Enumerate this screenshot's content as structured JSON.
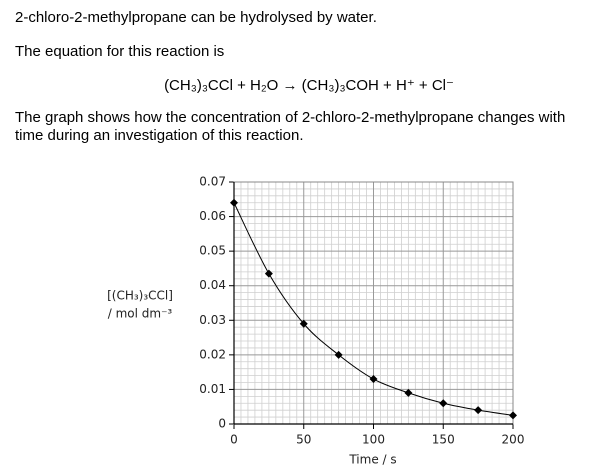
{
  "paragraphs": [
    "2-chloro-2-methylpropane can be hydrolysed by water.",
    "The equation for this reaction is",
    "The graph shows how the concentration of 2-chloro-2-methylpropane changes with time during an investigation of this reaction."
  ],
  "equation": "(CH₃)₃CCl + H₂O → (CH₃)₃COH + H⁺ + Cl⁻",
  "chart_data": {
    "type": "line",
    "x_label": "Time / s",
    "y_label": [
      "[(CH₃)₃CCl]",
      "/ mol dm⁻³"
    ],
    "x": [
      0,
      25,
      50,
      75,
      100,
      125,
      150,
      175,
      200
    ],
    "series": [
      {
        "color": "#000000",
        "values": [
          0.064,
          0.0435,
          0.029,
          0.02,
          0.013,
          0.009,
          0.006,
          0.004,
          0.0025
        ]
      }
    ],
    "xlim": [
      0,
      200
    ],
    "xticks": [
      0,
      50,
      100,
      150,
      200
    ],
    "ylim": [
      0,
      0.07
    ],
    "yticks": [
      0,
      0.01,
      0.02,
      0.03,
      0.04,
      0.05,
      0.06,
      0.07
    ],
    "grid": true
  }
}
